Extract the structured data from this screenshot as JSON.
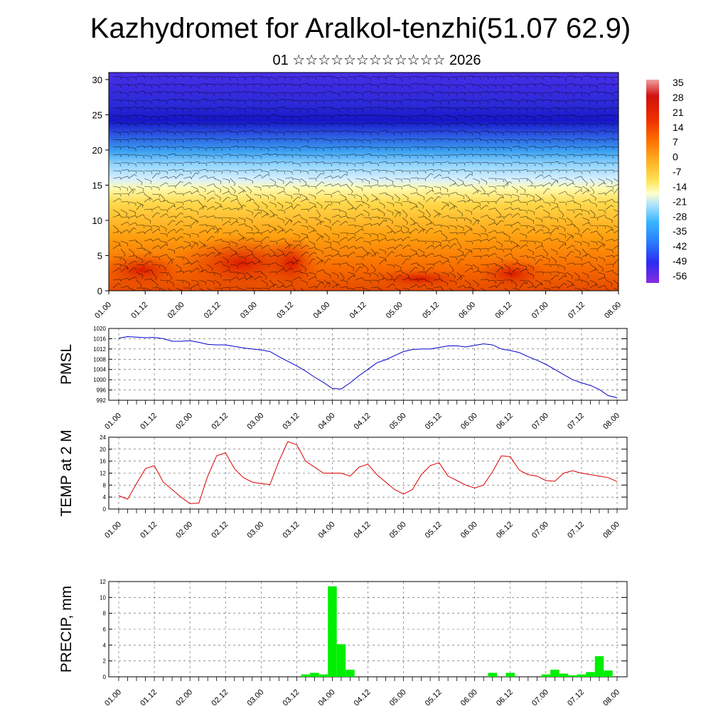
{
  "header": {
    "title": "Kazhydromet for Aralkol-tenzhi(51.07 62.9)",
    "subtitle": "01 ☆☆☆☆☆☆☆☆☆☆☆☆ 2026"
  },
  "colors": {
    "pmsl_line": "#0000cc",
    "temp_line": "#dd0000",
    "precip_bar": "#00ee00",
    "grid": "#555555"
  },
  "chart_data": [
    {
      "id": "cross-section",
      "type": "heatmap",
      "title": "",
      "xlabel": "",
      "ylabel": "",
      "x_tick_labels": [
        "01.00",
        "01.12",
        "02.00",
        "02.12",
        "03.00",
        "03.12",
        "04.00",
        "04.12",
        "05.00",
        "05.12",
        "06.00",
        "06.12",
        "07.00",
        "07.12",
        "08.00"
      ],
      "ylim": [
        0,
        31
      ],
      "y_ticks": [
        0,
        5,
        10,
        15,
        20,
        25,
        30
      ],
      "colorbar_labels": [
        "35",
        "28",
        "21",
        "14",
        "7",
        "0",
        "-7",
        "-14",
        "-21",
        "-28",
        "-35",
        "-42",
        "-49",
        "-56"
      ],
      "overlay": "wind barbs",
      "description_levels": {
        "surface_temp_range": [
          0,
          30
        ],
        "tropopause_min": -56
      }
    },
    {
      "id": "pmsl",
      "type": "line",
      "ylabel": "PMSL",
      "ylim": [
        992,
        1020
      ],
      "y_ticks": [
        992,
        996,
        1000,
        1004,
        1008,
        1012,
        1016,
        1020
      ],
      "x_tick_labels": [
        "01.00",
        "01.12",
        "02.00",
        "02.12",
        "03.00",
        "03.12",
        "04.00",
        "04.12",
        "05.00",
        "05.12",
        "06.00",
        "06.12",
        "07.00",
        "07.12",
        "08.00"
      ],
      "x_step_hours": 6,
      "values": [
        1016.2,
        1016.8,
        1016.6,
        1016.4,
        1016.5,
        1016.0,
        1015.0,
        1015.0,
        1015.2,
        1014.6,
        1013.8,
        1013.6,
        1013.6,
        1013.0,
        1012.4,
        1012.0,
        1011.6,
        1011.0,
        1009.0,
        1007.2,
        1005.4,
        1003.4,
        1001.0,
        999.0,
        996.6,
        996.4,
        998.8,
        1001.6,
        1004.0,
        1006.6,
        1007.8,
        1009.4,
        1011.0,
        1011.8,
        1012.0,
        1012.0,
        1012.6,
        1013.2,
        1013.2,
        1012.8,
        1013.4,
        1014.0,
        1013.6,
        1012.0,
        1011.4,
        1010.6,
        1009.0,
        1007.6,
        1006.0,
        1004.0,
        1002.0,
        1000.0,
        998.8,
        997.8,
        996.2,
        993.8,
        993.0
      ]
    },
    {
      "id": "temp2m",
      "type": "line",
      "ylabel": "TEMP at 2 M",
      "ylim": [
        0,
        24
      ],
      "y_ticks": [
        0,
        4,
        8,
        12,
        16,
        20,
        24
      ],
      "x_tick_labels": [
        "01.00",
        "01.12",
        "02.00",
        "02.12",
        "03.00",
        "03.12",
        "04.00",
        "04.12",
        "05.00",
        "05.12",
        "06.00",
        "06.12",
        "07.00",
        "07.12",
        "08.00"
      ],
      "x_step_hours": 6,
      "values": [
        4.5,
        3.3,
        8.5,
        13.5,
        14.5,
        9.0,
        6.5,
        4.0,
        1.8,
        2.0,
        11.0,
        17.8,
        18.8,
        13.5,
        10.5,
        9.0,
        8.5,
        8.2,
        16.0,
        22.5,
        21.5,
        16.0,
        14.0,
        12.0,
        12.0,
        12.0,
        11.0,
        14.0,
        15.0,
        11.5,
        9.0,
        6.5,
        5.0,
        6.5,
        11.5,
        14.5,
        15.5,
        11.0,
        9.5,
        8.0,
        7.0,
        8.0,
        12.5,
        17.8,
        17.5,
        13.0,
        11.5,
        11.0,
        9.5,
        9.3,
        12.0,
        12.8,
        12.0,
        11.5,
        11.0,
        10.5,
        9.2
      ]
    },
    {
      "id": "precip",
      "type": "bar",
      "ylabel": "PRECIP, mm",
      "ylim": [
        0,
        12
      ],
      "y_ticks": [
        0,
        2,
        4,
        6,
        8,
        10,
        12
      ],
      "x_tick_labels": [
        "01.00",
        "01.12",
        "02.00",
        "02.12",
        "03.00",
        "03.12",
        "04.00",
        "04.12",
        "05.00",
        "05.12",
        "06.00",
        "06.12",
        "07.00",
        "07.12",
        "08.00"
      ],
      "x_step_hours": 6,
      "values": [
        0,
        0,
        0,
        0,
        0,
        0,
        0,
        0,
        0,
        0,
        0,
        0,
        0,
        0,
        0,
        0,
        0,
        0,
        0,
        0,
        0,
        0.3,
        0.5,
        0.3,
        11.4,
        4.1,
        0.9,
        0,
        0,
        0,
        0,
        0,
        0,
        0,
        0,
        0,
        0,
        0,
        0,
        0,
        0,
        0,
        0.5,
        0,
        0.5,
        0,
        0,
        0,
        0.3,
        0.9,
        0.4,
        0.2,
        0.3,
        0.6,
        2.6,
        0.8,
        0
      ]
    }
  ]
}
